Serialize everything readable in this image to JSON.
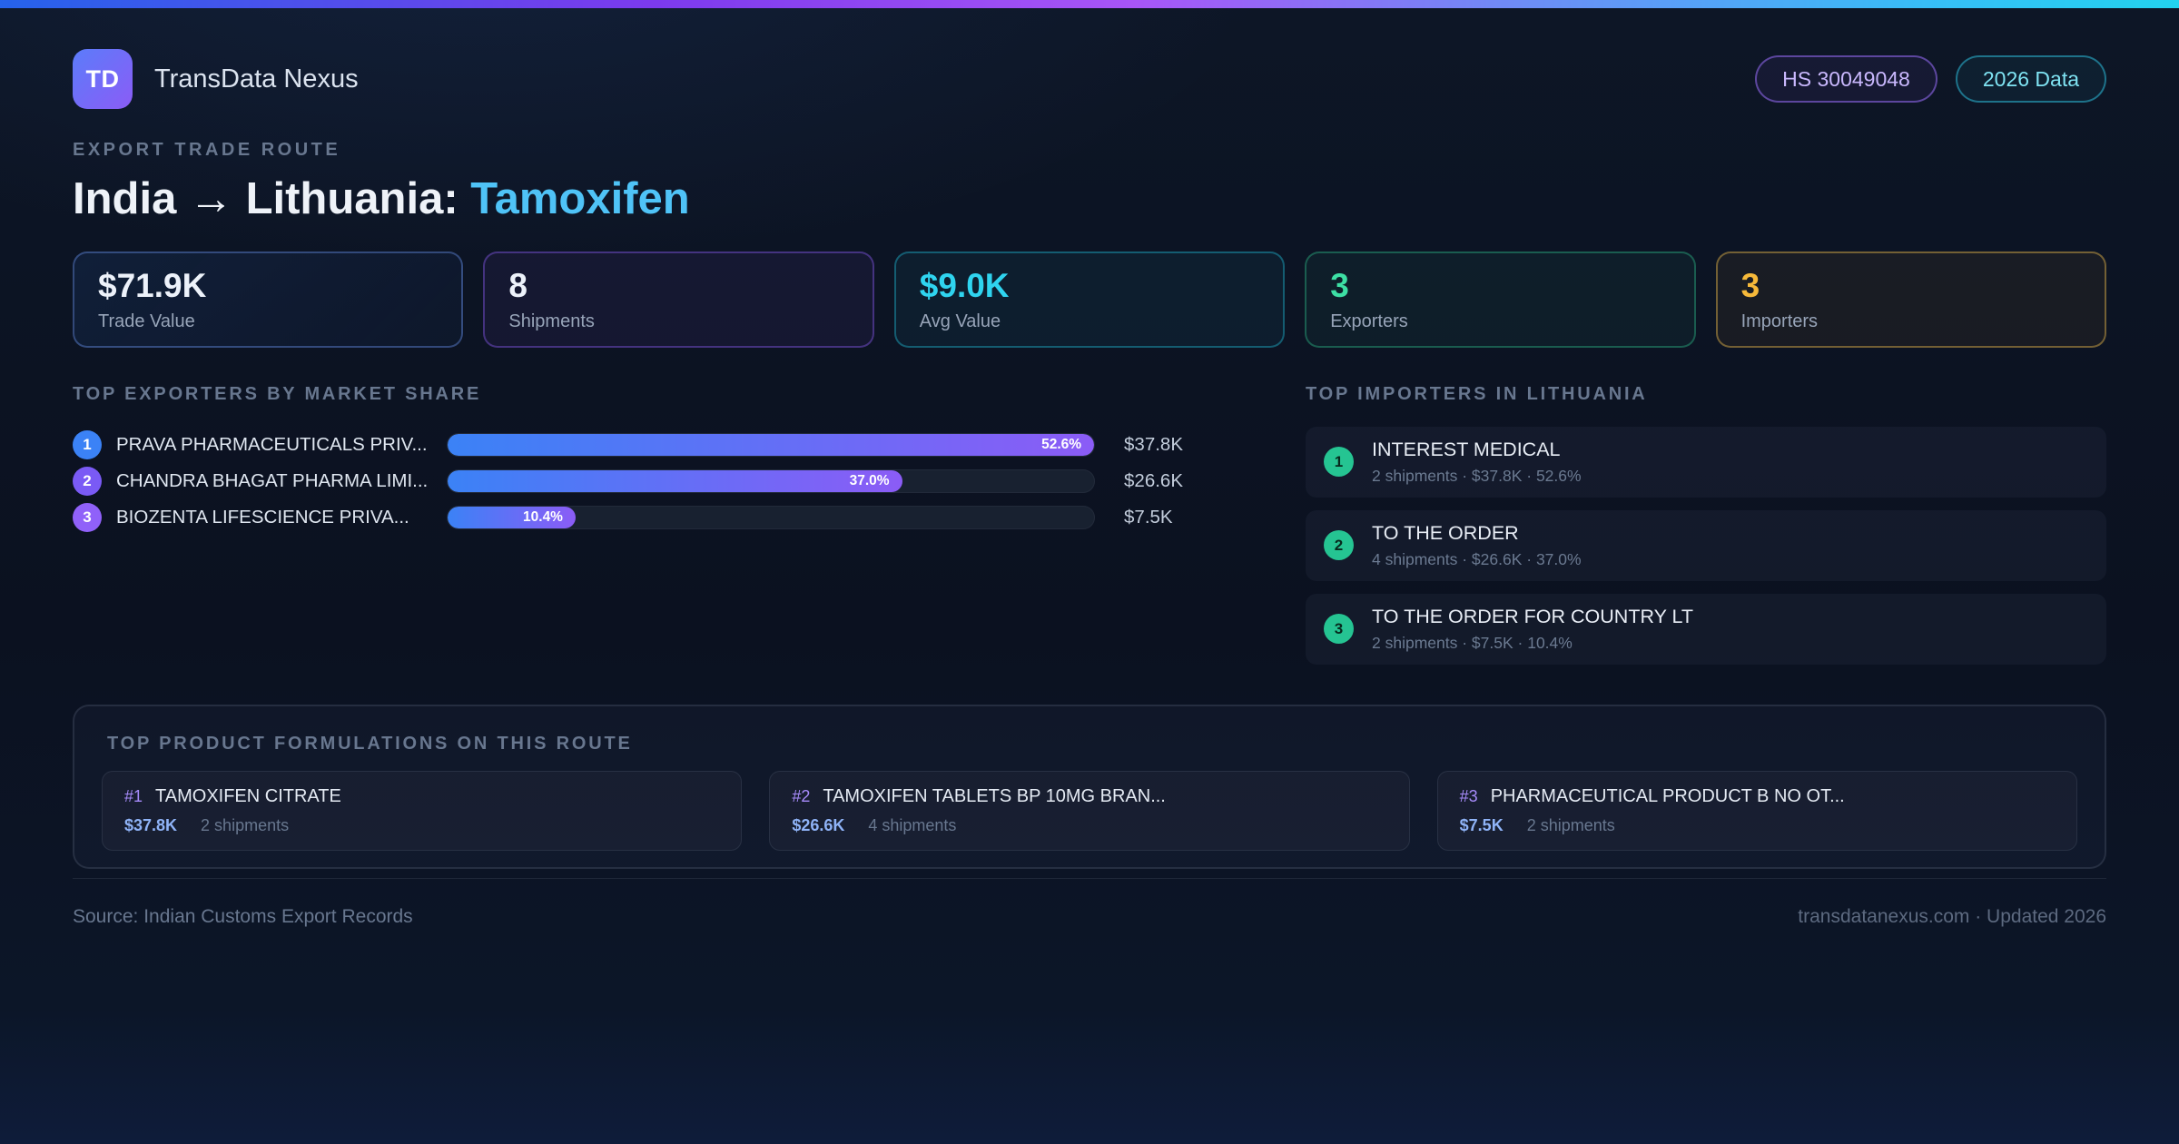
{
  "header": {
    "logo_text": "TD",
    "app_name": "TransData Nexus",
    "hs_badge": "HS 30049048",
    "year_badge": "2026 Data"
  },
  "hero": {
    "eyebrow": "EXPORT TRADE ROUTE",
    "title_main": "India → Lithuania:",
    "title_highlight": "Tamoxifen"
  },
  "stats": [
    {
      "value": "$71.9K",
      "label": "Trade Value"
    },
    {
      "value": "8",
      "label": "Shipments"
    },
    {
      "value": "$9.0K",
      "label": "Avg Value"
    },
    {
      "value": "3",
      "label": "Exporters"
    },
    {
      "value": "3",
      "label": "Importers"
    }
  ],
  "exporters": {
    "heading": "TOP EXPORTERS BY MARKET SHARE",
    "items": [
      {
        "rank": "1",
        "name": "PRAVA PHARMACEUTICALS PRIV...",
        "share_pct": 52.6,
        "share_label": "52.6%",
        "value": "$37.8K"
      },
      {
        "rank": "2",
        "name": "CHANDRA BHAGAT PHARMA LIMI...",
        "share_pct": 37.0,
        "share_label": "37.0%",
        "value": "$26.6K"
      },
      {
        "rank": "3",
        "name": "BIOZENTA LIFESCIENCE PRIVA...",
        "share_pct": 10.4,
        "share_label": "10.4%",
        "value": "$7.5K"
      }
    ]
  },
  "importers": {
    "heading": "TOP IMPORTERS IN LITHUANIA",
    "items": [
      {
        "rank": "1",
        "name": "INTEREST MEDICAL",
        "detail": "2 shipments · $37.8K · 52.6%"
      },
      {
        "rank": "2",
        "name": "TO THE ORDER",
        "detail": "4 shipments · $26.6K · 37.0%"
      },
      {
        "rank": "3",
        "name": "TO THE ORDER FOR COUNTRY LT",
        "detail": "2 shipments · $7.5K · 10.4%"
      }
    ]
  },
  "products": {
    "heading": "TOP PRODUCT FORMULATIONS ON THIS ROUTE",
    "items": [
      {
        "rank": "#1",
        "name": "TAMOXIFEN CITRATE",
        "value": "$37.8K",
        "shipments": "2 shipments"
      },
      {
        "rank": "#2",
        "name": "TAMOXIFEN TABLETS BP 10MG BRAN...",
        "value": "$26.6K",
        "shipments": "4 shipments"
      },
      {
        "rank": "#3",
        "name": "PHARMACEUTICAL PRODUCT B NO OT...",
        "value": "$7.5K",
        "shipments": "2 shipments"
      }
    ]
  },
  "footer": {
    "source": "Source: Indian Customs Export Records",
    "site": "transdatanexus.com · Updated 2026"
  },
  "colors": {
    "accent_blue": "#3b82f6",
    "accent_purple": "#8b5cf6",
    "accent_cyan": "#22d3ee",
    "accent_green": "#34d399",
    "accent_amber": "#fbbf24",
    "highlight_title": "#4fc3f7",
    "bar_gradient": [
      "#3b82f6",
      "#8b5cf6"
    ]
  }
}
